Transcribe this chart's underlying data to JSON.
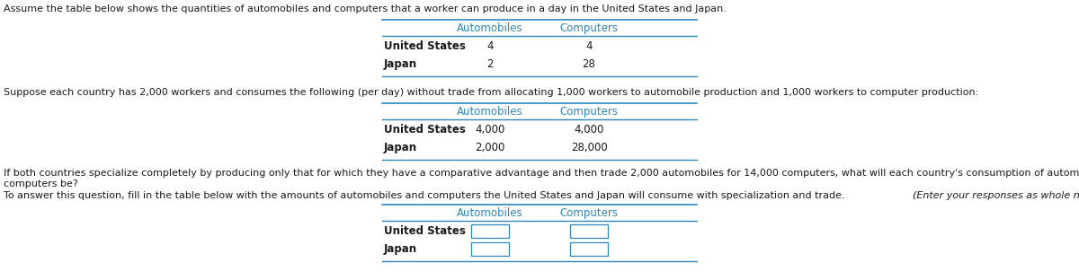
{
  "text_color": "#1a1a1a",
  "header_color": "#2E86C1",
  "line_color": "#2E86C1",
  "bg_color": "#FFFFFF",
  "intro_text": "Assume the table below shows the quantities of automobiles and computers that a worker can produce in a day in the United States and Japan.",
  "table1": {
    "col_headers": [
      "Automobiles",
      "Computers"
    ],
    "rows": [
      [
        "United States",
        "4",
        "4"
      ],
      [
        "Japan",
        "2",
        "28"
      ]
    ]
  },
  "middle_text": "Suppose each country has 2,000 workers and consumes the following (per day) without trade from allocating 1,000 workers to automobile production and 1,000 workers to computer production:",
  "table2": {
    "col_headers": [
      "Automobiles",
      "Computers"
    ],
    "rows": [
      [
        "United States",
        "4,000",
        "4,000"
      ],
      [
        "Japan",
        "2,000",
        "28,000"
      ]
    ]
  },
  "bottom_text1a": "If both countries specialize completely by producing only that for which they have a comparative advantage and then trade 2,000 automobiles for 14,000 computers, what will each country's consumption of automobiles and",
  "bottom_text1b": "computers be?",
  "bottom_text2": "To answer this question, fill in the table below with the amounts of automobiles and computers the United States and Japan will consume with specialization and trade.",
  "bottom_text2_italic": "  (Enter your responses as whole numbers.)",
  "table3": {
    "col_headers": [
      "Automobiles",
      "Computers"
    ],
    "rows": [
      [
        "United States",
        "",
        ""
      ],
      [
        "Japan",
        "",
        ""
      ]
    ]
  },
  "font_size_text": 8.0,
  "font_size_table_header": 8.5,
  "font_size_table_body": 8.5
}
